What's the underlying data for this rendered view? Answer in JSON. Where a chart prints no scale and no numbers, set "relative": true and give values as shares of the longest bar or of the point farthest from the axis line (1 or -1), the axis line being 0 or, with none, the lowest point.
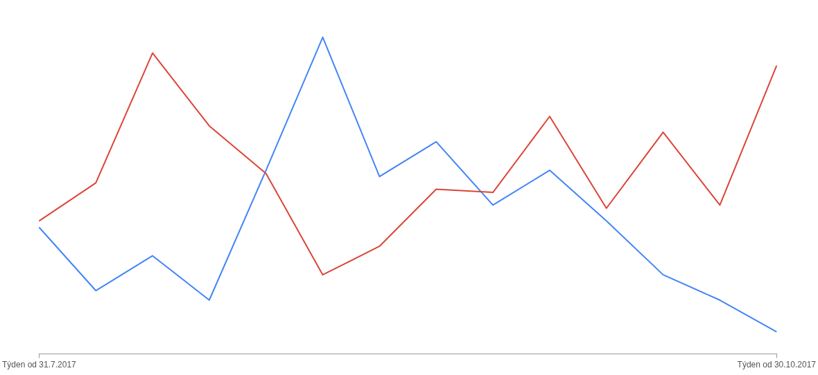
{
  "chart_data": {
    "type": "line",
    "relative": true,
    "marker": "none",
    "line_style": "solid",
    "categories": [
      "Týden od 31.7.2017",
      null,
      null,
      null,
      null,
      null,
      null,
      null,
      null,
      null,
      null,
      null,
      null,
      "Týden od 30.10.2017"
    ],
    "series": [
      {
        "color": "#db4437",
        "values": [
          0.42,
          0.54,
          0.95,
          0.72,
          0.57,
          0.25,
          0.34,
          0.52,
          0.51,
          0.75,
          0.46,
          0.7,
          0.47,
          0.91
        ]
      },
      {
        "color": "#4285f4",
        "values": [
          0.4,
          0.2,
          0.31,
          0.17,
          0.58,
          1,
          0.56,
          0.67,
          0.47,
          0.58,
          0.42,
          0.25,
          0.17,
          0.07
        ]
      }
    ]
  }
}
